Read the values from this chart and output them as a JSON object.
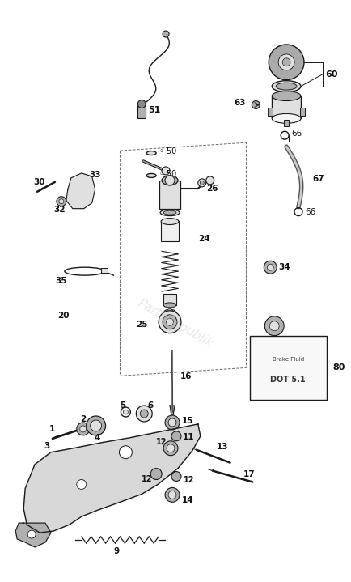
{
  "bg_color": "#ffffff",
  "fig_width": 4.34,
  "fig_height": 7.19,
  "dpi": 100,
  "watermark": "PartsRepublik",
  "watermark_color": "#cccccc",
  "label_fontsize": 7.5,
  "line_color": "#1a1a1a",
  "fill_light": "#e0e0e0",
  "fill_mid": "#b0b0b0",
  "fill_dark": "#888888"
}
